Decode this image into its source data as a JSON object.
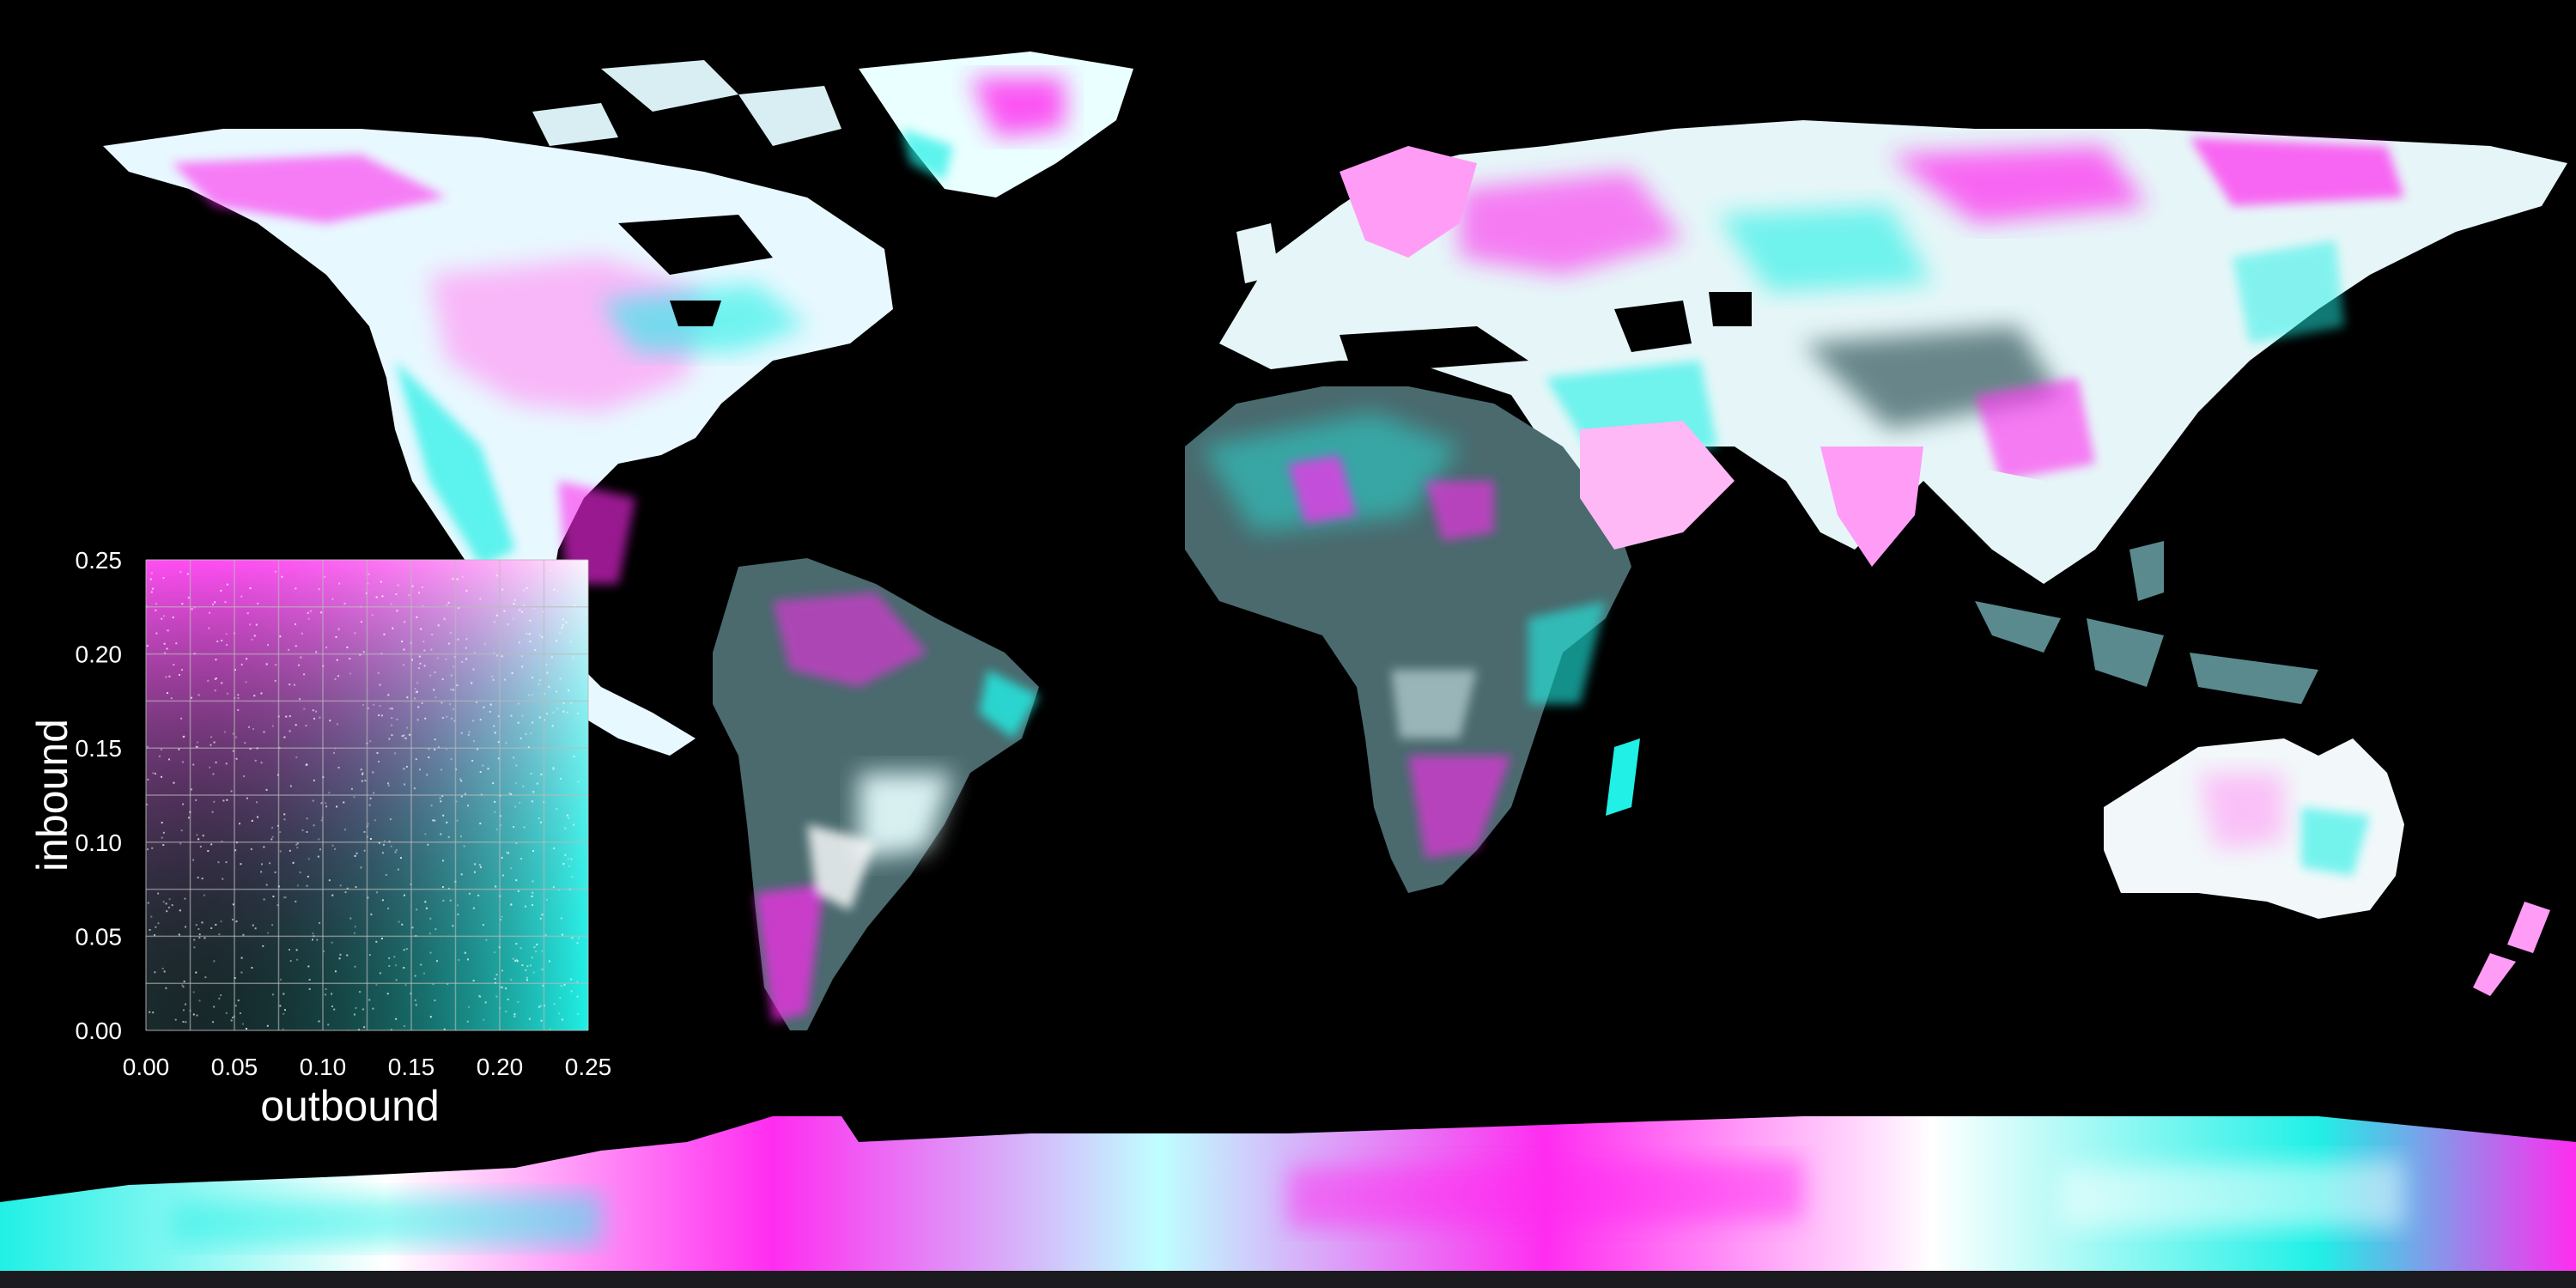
{
  "colors": {
    "background": "#000000",
    "outbound": "#20f0e6",
    "inbound": "#ff2cf0",
    "both": "#ffffff",
    "neutral": "#3c4a4c"
  },
  "legend": {
    "xlabel": "outbound",
    "ylabel": "inbound",
    "xlim": [
      0,
      0.25
    ],
    "ylim": [
      0,
      0.25
    ],
    "x_ticks": [
      "0.00",
      "0.05",
      "0.10",
      "0.15",
      "0.20",
      "0.25"
    ],
    "y_ticks": [
      "0.00",
      "0.05",
      "0.10",
      "0.15",
      "0.20",
      "0.25"
    ],
    "x_tick_values": [
      0,
      0.05,
      0.1,
      0.15,
      0.2,
      0.25
    ],
    "y_tick_values": [
      0,
      0.05,
      0.1,
      0.15,
      0.2,
      0.25
    ],
    "grid": true
  }
}
